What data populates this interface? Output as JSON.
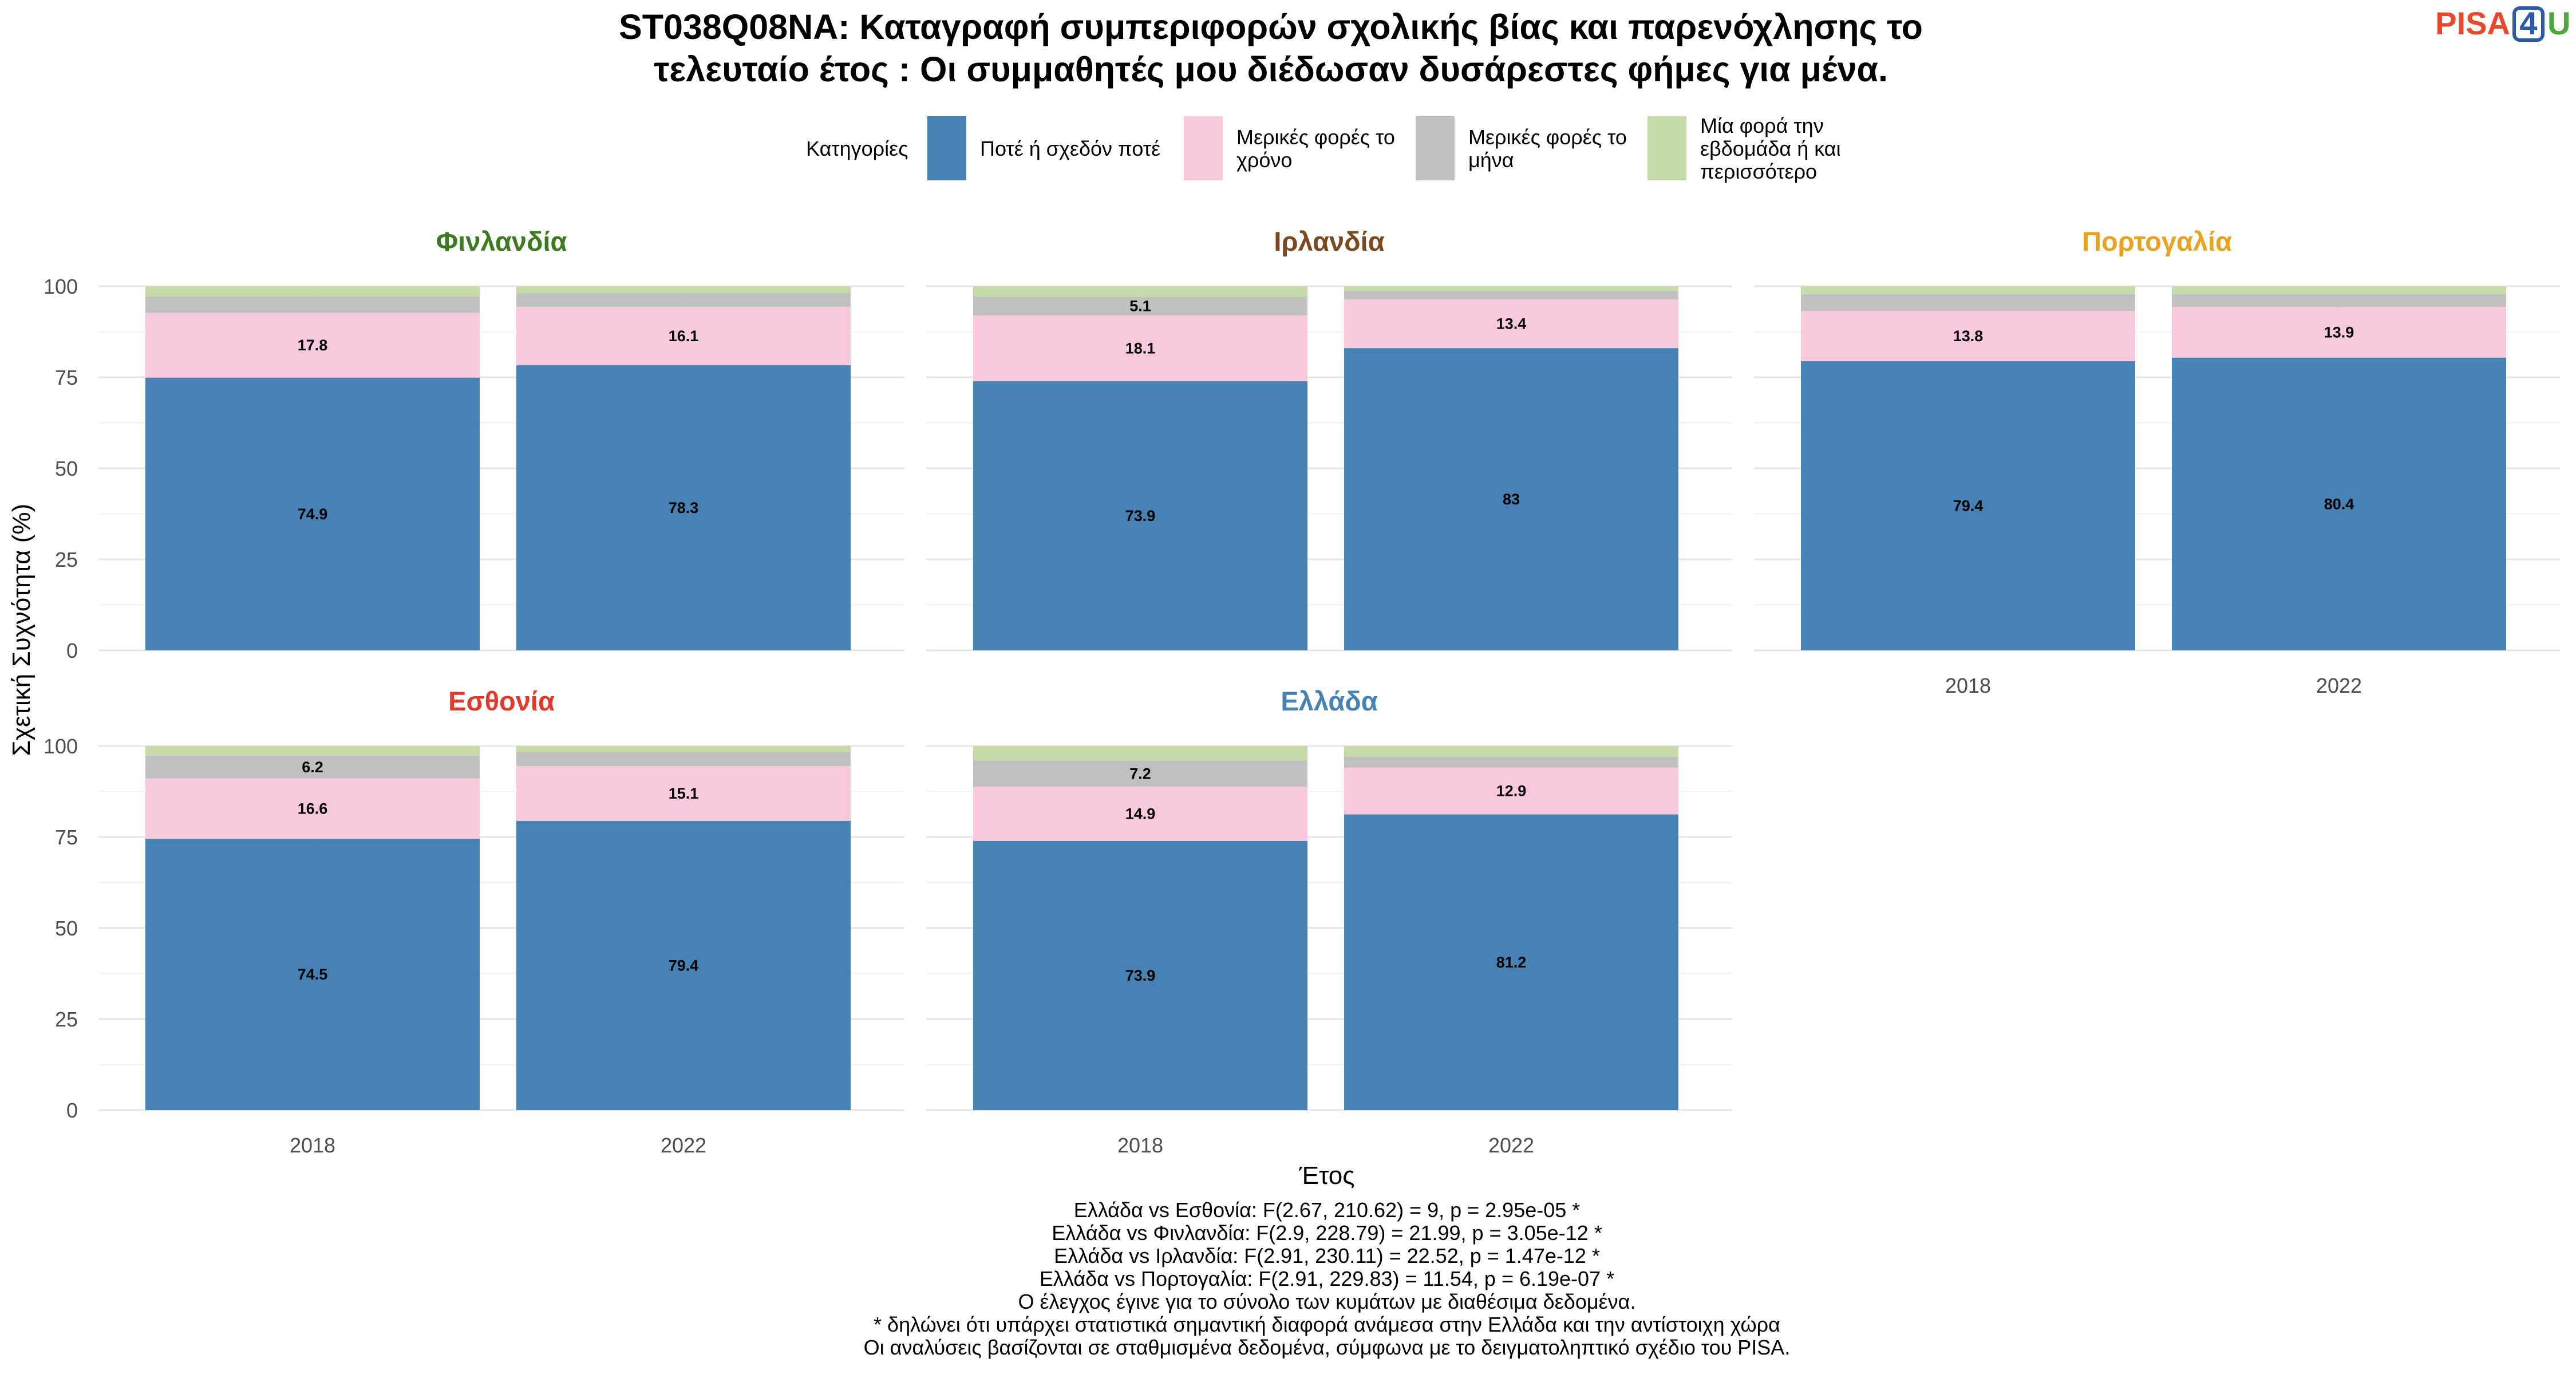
{
  "title_lines": [
    "ST038Q08NA: Καταγραφή συμπεριφορών σχολικής βίας και παρενόχλησης το",
    "τελευταίο έτος : Οι συμμαθητές μου διέδωσαν δυσάρεστες φήμες για μένα."
  ],
  "logo": {
    "text": "PISA",
    "digit": "4",
    "letter": "U",
    "text_color": "#e8482c",
    "digit_color": "#2a5aa8",
    "letter_color": "#4aa83a"
  },
  "legend": {
    "title": "Κατηγορίες",
    "items": [
      {
        "lines": [
          "Ποτέ ή σχεδόν ποτέ"
        ],
        "color": "#4682b4"
      },
      {
        "lines": [
          "Μερικές φορές το",
          "χρόνο"
        ],
        "color": "#f8c8dc"
      },
      {
        "lines": [
          "Μερικές φορές το",
          "μήνα"
        ],
        "color": "#c0c0c0"
      },
      {
        "lines": [
          "Μία φορά την",
          "εβδομάδα ή και",
          "περισσότερο"
        ],
        "color": "#c4dba8"
      }
    ]
  },
  "chart_data": {
    "type": "bar",
    "stacked": true,
    "categories": [
      "2018",
      "2022"
    ],
    "series_names": [
      "Ποτέ ή σχεδόν ποτέ",
      "Μερικές φορές το χρόνο",
      "Μερικές φορές το μήνα",
      "Μία φορά την εβδομάδα ή και περισσότερο"
    ],
    "xlabel": "Έτος",
    "ylabel": "Σχετική Συχνότητα (%)",
    "ylim": [
      0,
      100
    ],
    "yticks": [
      0,
      25,
      50,
      75,
      100
    ],
    "grid": true,
    "legend_position": "top",
    "panels": [
      {
        "name": "Φινλανδία",
        "color": "#3b7a1e",
        "bars": [
          {
            "year": "2018",
            "values": [
              74.9,
              17.8,
              4.5,
              2.8
            ],
            "labels": [
              "74.9",
              "17.8",
              "",
              ""
            ]
          },
          {
            "year": "2022",
            "values": [
              78.3,
              16.1,
              3.7,
              1.9
            ],
            "labels": [
              "78.3",
              "16.1",
              "",
              ""
            ]
          }
        ]
      },
      {
        "name": "Ιρλανδία",
        "color": "#7a4a1e",
        "bars": [
          {
            "year": "2018",
            "values": [
              73.9,
              18.1,
              5.1,
              2.9
            ],
            "labels": [
              "73.9",
              "18.1",
              "5.1",
              ""
            ]
          },
          {
            "year": "2022",
            "values": [
              83,
              13.4,
              2.3,
              1.3
            ],
            "labels": [
              "83",
              "13.4",
              "",
              ""
            ]
          }
        ]
      },
      {
        "name": "Πορτογαλία",
        "color": "#e8a21e",
        "bars": [
          {
            "year": "2018",
            "values": [
              79.4,
              13.8,
              4.6,
              2.2
            ],
            "labels": [
              "79.4",
              "13.8",
              "",
              ""
            ]
          },
          {
            "year": "2022",
            "values": [
              80.4,
              13.9,
              3.5,
              2.2
            ],
            "labels": [
              "80.4",
              "13.9",
              "",
              ""
            ]
          }
        ]
      },
      {
        "name": "Εσθονία",
        "color": "#e03a2a",
        "bars": [
          {
            "year": "2018",
            "values": [
              74.5,
              16.6,
              6.2,
              2.7
            ],
            "labels": [
              "74.5",
              "16.6",
              "6.2",
              ""
            ]
          },
          {
            "year": "2022",
            "values": [
              79.4,
              15.1,
              3.9,
              1.6
            ],
            "labels": [
              "79.4",
              "15.1",
              "",
              ""
            ]
          }
        ]
      },
      {
        "name": "Ελλάδα",
        "color": "#4682b4",
        "bars": [
          {
            "year": "2018",
            "values": [
              73.9,
              14.9,
              7.2,
              4.0
            ],
            "labels": [
              "73.9",
              "14.9",
              "7.2",
              ""
            ]
          },
          {
            "year": "2022",
            "values": [
              81.2,
              12.9,
              2.9,
              3.0
            ],
            "labels": [
              "81.2",
              "12.9",
              "",
              ""
            ]
          }
        ]
      }
    ]
  },
  "caption_lines": [
    "Ελλάδα vs Εσθονία: F(2.67, 210.62) = 9, p = 2.95e-05 *",
    "Ελλάδα vs Φινλανδία: F(2.9, 228.79) = 21.99, p = 3.05e-12 *",
    "Ελλάδα vs Ιρλανδία: F(2.91, 230.11) = 22.52, p = 1.47e-12 *",
    "Ελλάδα vs Πορτογαλία: F(2.91, 229.83) = 11.54, p = 6.19e-07 *",
    "Ο έλεγχος έγινε για το σύνολο των κυμάτων με διαθέσιμα δεδομένα.",
    "* δηλώνει ότι υπάρχει στατιστικά σημαντική διαφορά ανάμεσα στην Ελλάδα και την αντίστοιχη χώρα",
    "Οι αναλύσεις βασίζονται σε σταθμισμένα δεδομένα, σύμφωνα με το δειγματοληπτικό σχέδιο του PISA."
  ]
}
